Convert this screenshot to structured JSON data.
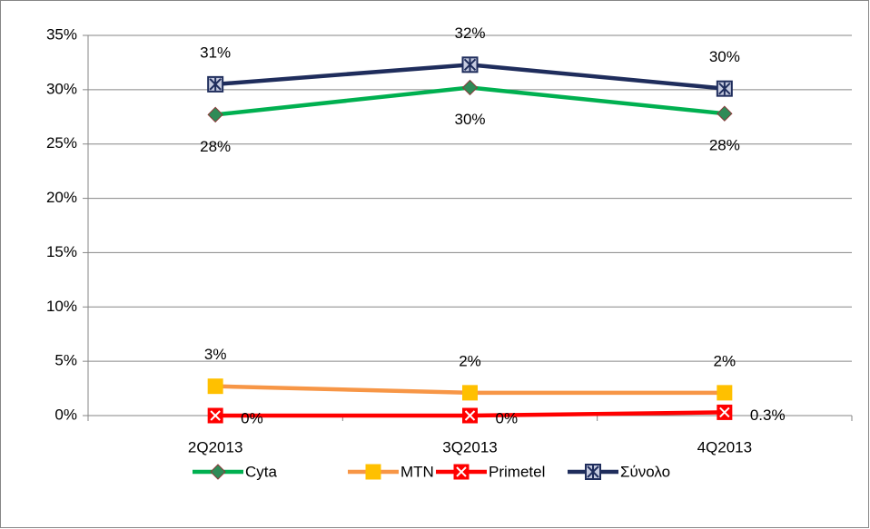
{
  "chart_data": {
    "type": "line",
    "categories": [
      "2Q2013",
      "3Q2013",
      "4Q2013"
    ],
    "series": [
      {
        "name": "Cyta",
        "color": "#00b050",
        "marker": "diamond",
        "values": [
          27.7,
          30.2,
          27.8
        ],
        "value_labels": [
          "28%",
          "30%",
          "28%"
        ]
      },
      {
        "name": "MTN",
        "color": "#f79646",
        "marker": "square",
        "values": [
          2.7,
          2.1,
          2.1
        ],
        "value_labels": [
          "3%",
          "2%",
          "2%"
        ]
      },
      {
        "name": "Primetel",
        "color": "#ff0000",
        "marker": "x",
        "values": [
          0,
          0,
          0.3
        ],
        "value_labels": [
          "0%",
          "0%",
          "0.3%"
        ]
      },
      {
        "name": "Σύνολο",
        "color": "#1f2d5c",
        "marker": "star",
        "values": [
          30.5,
          32.3,
          30.1
        ],
        "value_labels": [
          "31%",
          "32%",
          "30%"
        ]
      }
    ],
    "ylim": [
      0,
      35
    ],
    "yticks": [
      {
        "value": 0,
        "label": "0%"
      },
      {
        "value": 5,
        "label": "5%"
      },
      {
        "value": 10,
        "label": "10%"
      },
      {
        "value": 15,
        "label": "15%"
      },
      {
        "value": 20,
        "label": "20%"
      },
      {
        "value": 25,
        "label": "25%"
      },
      {
        "value": 30,
        "label": "30%"
      },
      {
        "value": 35,
        "label": "35%"
      }
    ],
    "grid": true,
    "legend": "bottom"
  }
}
